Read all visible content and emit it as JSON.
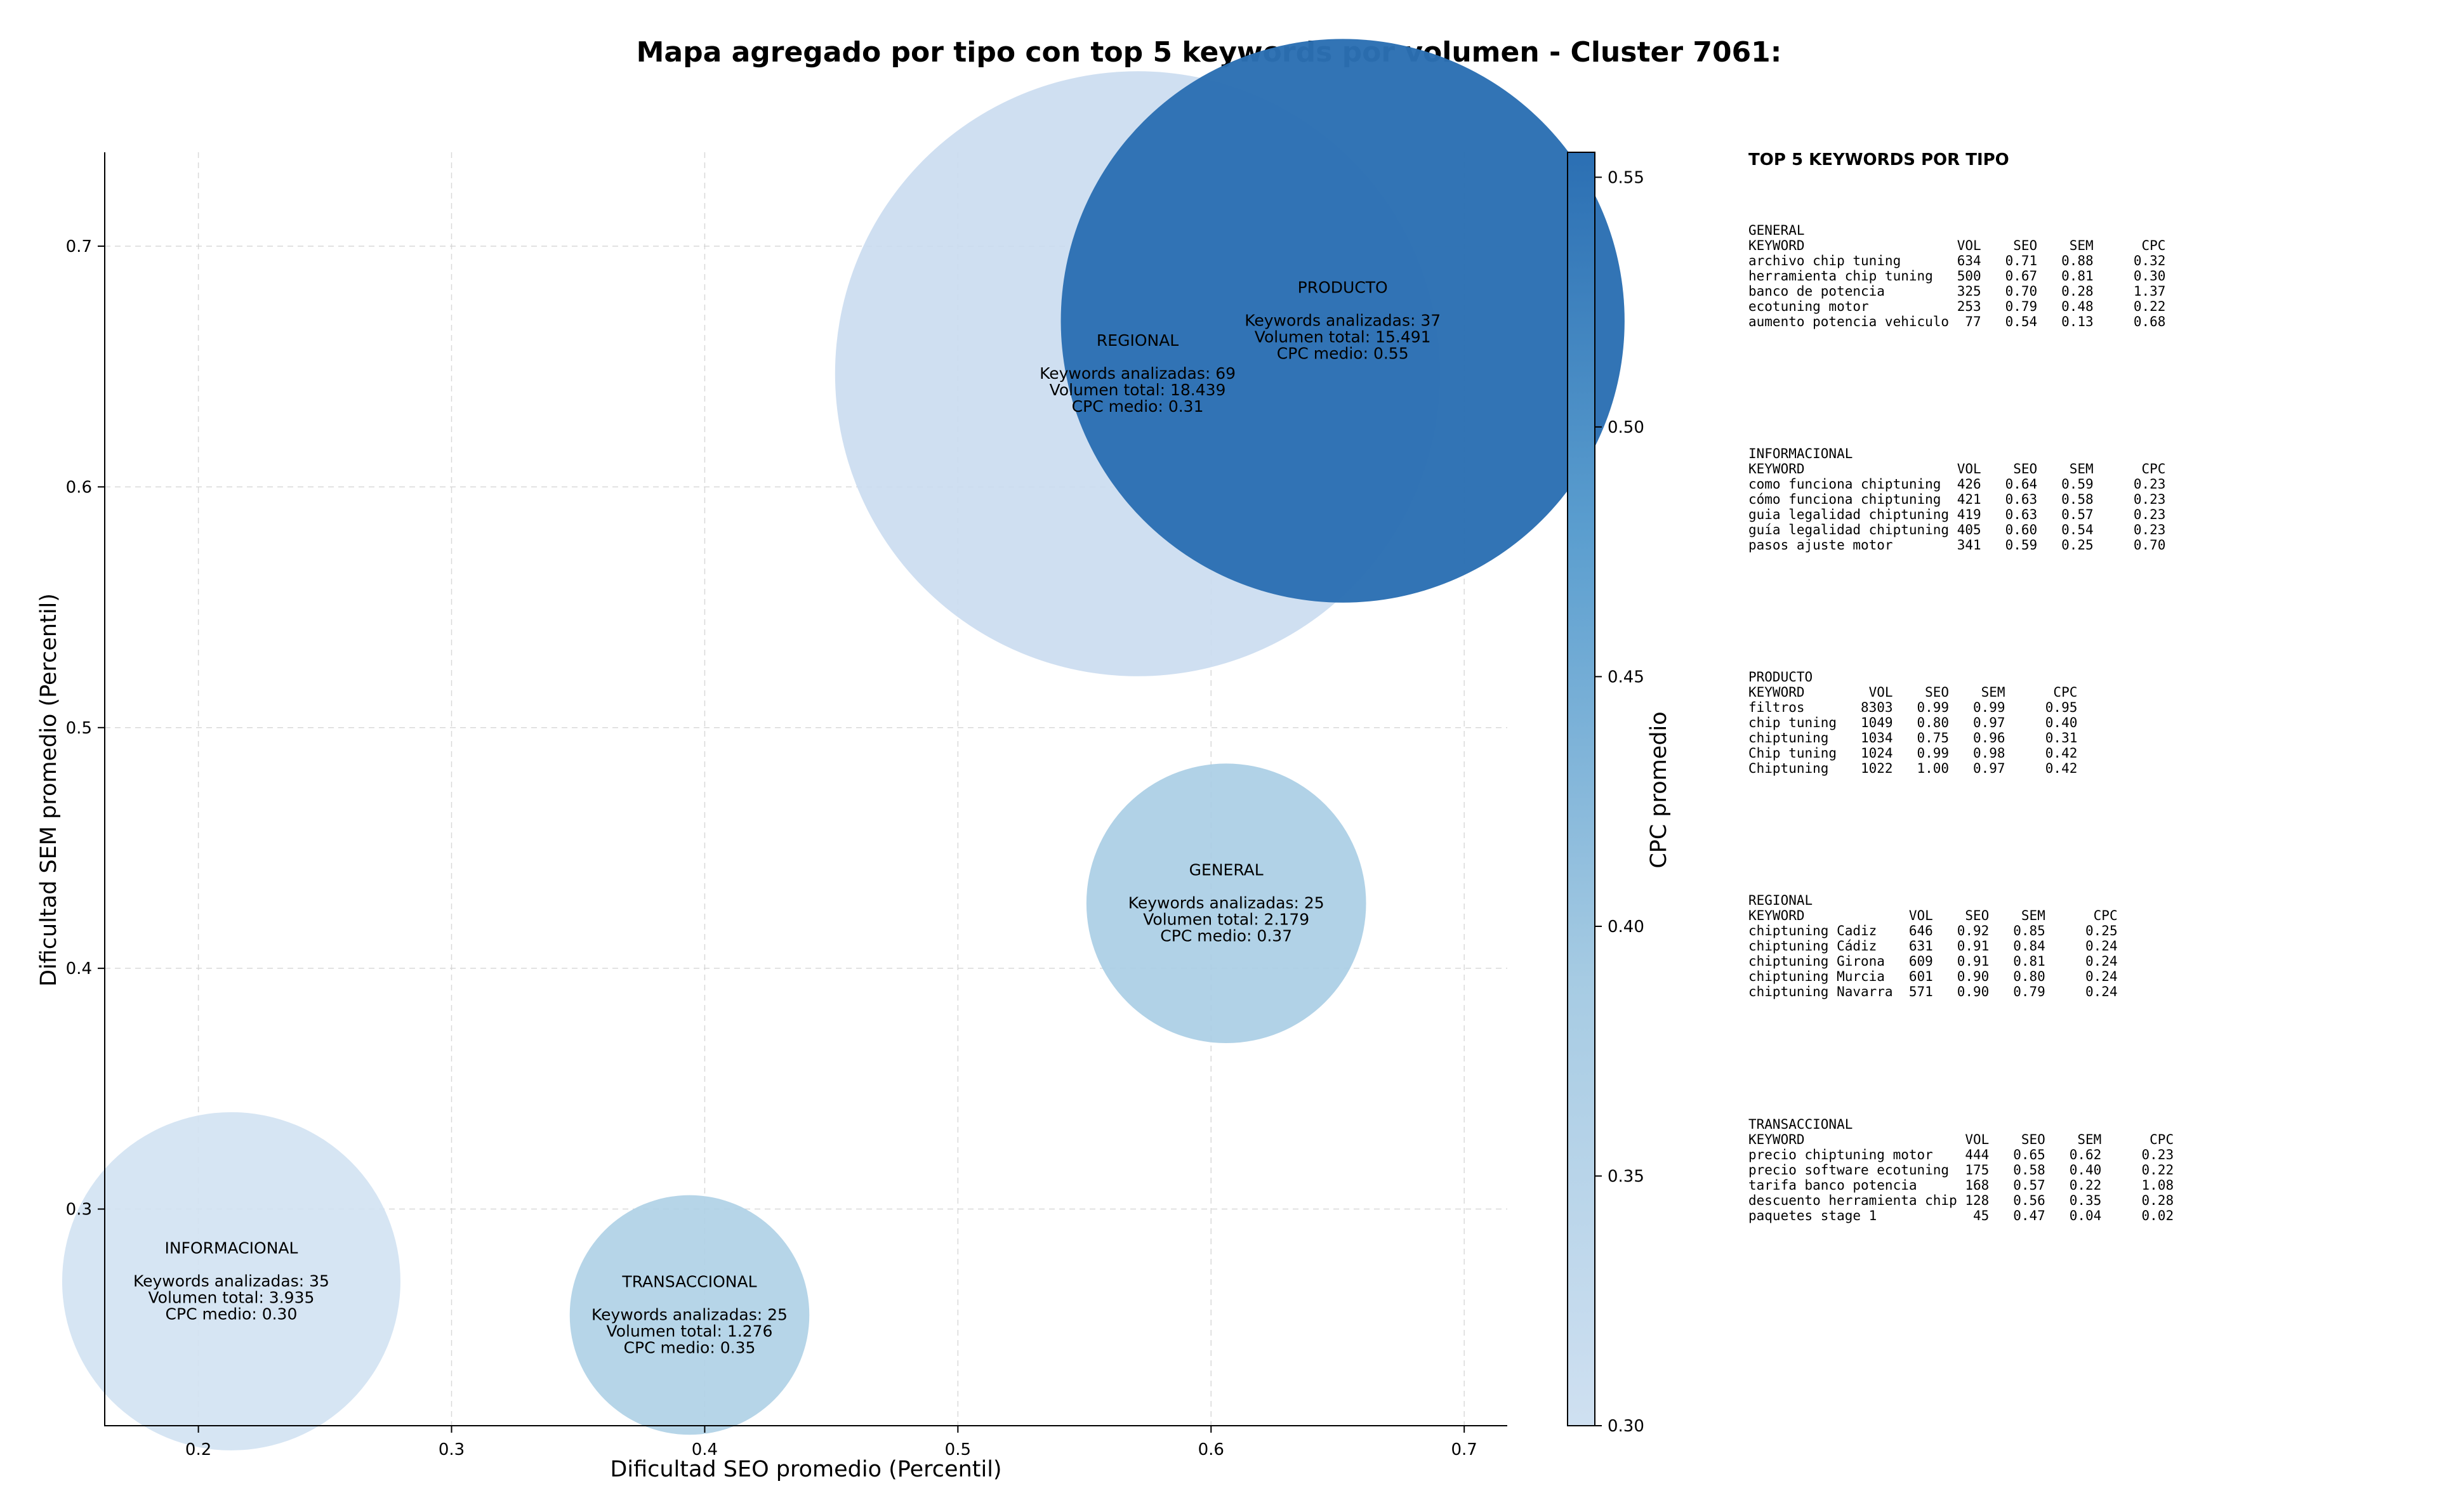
{
  "chart_data": {
    "type": "scatter",
    "subtype": "bubble",
    "title": "Mapa agregado por tipo con top 5 keywords por volumen - Cluster 7061:",
    "xlabel": "Dificultad SEO promedio (Percentil)",
    "ylabel": "Dificultad SEM promedio (Percentil)",
    "xlim": [
      0.163,
      0.717
    ],
    "ylim": [
      0.21,
      0.739
    ],
    "xticks": [
      "0.2",
      "0.3",
      "0.4",
      "0.5",
      "0.6",
      "0.7"
    ],
    "yticks": [
      "0.3",
      "0.4",
      "0.5",
      "0.6",
      "0.7"
    ],
    "grid": true,
    "colorbar": {
      "label": "CPC promedio",
      "range": [
        0.3,
        0.555
      ],
      "ticks": [
        "0.30",
        "0.35",
        "0.40",
        "0.45",
        "0.50",
        "0.55"
      ],
      "color_low": "#cfe0f1",
      "color_high": "#2b6fb3"
    },
    "points": [
      {
        "name": "REGIONAL",
        "x": 0.571,
        "y": 0.647,
        "volume": 18439,
        "keywords": 69,
        "cpc": 0.31,
        "color": "#cadcef",
        "lines": [
          "REGIONAL",
          "",
          "Keywords analizadas: 69",
          "Volumen total: 18.439",
          "CPC medio: 0.31"
        ]
      },
      {
        "name": "PRODUCTO",
        "x": 0.652,
        "y": 0.669,
        "volume": 15491,
        "keywords": 37,
        "cpc": 0.55,
        "color": "#2b6fb3",
        "lines": [
          "PRODUCTO",
          "",
          "Keywords analizadas: 37",
          "Volumen total: 15.491",
          "CPC medio: 0.55"
        ]
      },
      {
        "name": "GENERAL",
        "x": 0.606,
        "y": 0.427,
        "volume": 2179,
        "keywords": 25,
        "cpc": 0.37,
        "color": "#a9cde4",
        "lines": [
          "GENERAL",
          "",
          "Keywords analizadas: 25",
          "Volumen total: 2.179",
          "CPC medio: 0.37"
        ]
      },
      {
        "name": "INFORMACIONAL",
        "x": 0.213,
        "y": 0.27,
        "volume": 3935,
        "keywords": 35,
        "cpc": 0.3,
        "color": "#d2e2f2",
        "lines": [
          "INFORMACIONAL",
          "",
          "Keywords analizadas: 35",
          "Volumen total: 3.935",
          "CPC medio: 0.30"
        ]
      },
      {
        "name": "TRANSACCIONAL",
        "x": 0.394,
        "y": 0.256,
        "volume": 1276,
        "keywords": 25,
        "cpc": 0.35,
        "color": "#aed0e6",
        "lines": [
          "TRANSACCIONAL",
          "",
          "Keywords analizadas: 25",
          "Volumen total: 1.276",
          "CPC medio: 0.35"
        ]
      }
    ],
    "side_table": {
      "heading": "TOP 5 KEYWORDS POR TIPO",
      "blocks": [
        {
          "lines": [
            "GENERAL",
            "KEYWORD                   VOL    SEO    SEM      CPC",
            "archivo chip tuning       634   0.71   0.88     0.32",
            "herramienta chip tuning   500   0.67   0.81     0.30",
            "banco de potencia         325   0.70   0.28     1.37",
            "ecotuning motor           253   0.79   0.48     0.22",
            "aumento potencia vehiculo  77   0.54   0.13     0.68"
          ]
        },
        {
          "lines": [
            "INFORMACIONAL",
            "KEYWORD                   VOL    SEO    SEM      CPC",
            "como funciona chiptuning  426   0.64   0.59     0.23",
            "cómo funciona chiptuning  421   0.63   0.58     0.23",
            "guia legalidad chiptuning 419   0.63   0.57     0.23",
            "guía legalidad chiptuning 405   0.60   0.54     0.23",
            "pasos ajuste motor        341   0.59   0.25     0.70"
          ]
        },
        {
          "lines": [
            "PRODUCTO",
            "KEYWORD        VOL    SEO    SEM      CPC",
            "filtros       8303   0.99   0.99     0.95",
            "chip tuning   1049   0.80   0.97     0.40",
            "chiptuning    1034   0.75   0.96     0.31",
            "Chip tuning   1024   0.99   0.98     0.42",
            "Chiptuning    1022   1.00   0.97     0.42"
          ]
        },
        {
          "lines": [
            "REGIONAL",
            "KEYWORD             VOL    SEO    SEM      CPC",
            "chiptuning Cadiz    646   0.92   0.85     0.25",
            "chiptuning Cádiz    631   0.91   0.84     0.24",
            "chiptuning Girona   609   0.91   0.81     0.24",
            "chiptuning Murcia   601   0.90   0.80     0.24",
            "chiptuning Navarra  571   0.90   0.79     0.24"
          ]
        },
        {
          "lines": [
            "TRANSACCIONAL",
            "KEYWORD                    VOL    SEO    SEM      CPC",
            "precio chiptuning motor    444   0.65   0.62     0.23",
            "precio software ecotuning  175   0.58   0.40     0.22",
            "tarifa banco potencia      168   0.57   0.22     1.08",
            "descuento herramienta chip 128   0.56   0.35     0.28",
            "paquetes stage 1            45   0.47   0.04     0.02"
          ]
        }
      ]
    }
  }
}
